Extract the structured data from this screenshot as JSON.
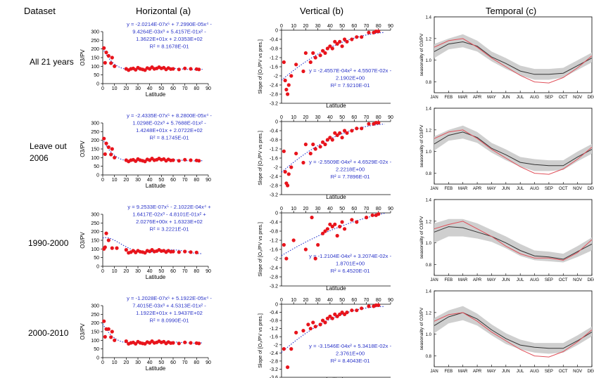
{
  "headers": {
    "dataset": "Dataset",
    "horizontal": "Horizontal (a)",
    "vertical": "Vertical (b)",
    "temporal": "Temporal (c)"
  },
  "row_labels": [
    [
      "All 21 years"
    ],
    [
      "Leave out",
      "2006"
    ],
    [
      "1990-2000"
    ],
    [
      "2000-2010"
    ]
  ],
  "colors": {
    "points": "#e8141c",
    "fit_line": "#2233cc",
    "equation_text": "#2b35c8",
    "temporal_red": "#e0505a",
    "temporal_black": "#333333",
    "temporal_band": "#cfcfcf"
  },
  "chart_data": [
    {
      "panel": "horizontal",
      "row": 0,
      "type": "scatter",
      "xlabel": "Latitude",
      "ylabel": "O3/PV",
      "xlim": [
        0,
        90
      ],
      "ylim": [
        0,
        300
      ],
      "xticks": [
        0,
        10,
        20,
        30,
        40,
        50,
        60,
        70,
        80,
        90
      ],
      "yticks": [
        0,
        50,
        100,
        150,
        200,
        250,
        300
      ],
      "equation": [
        "y = -2.0214E-07x⁵ + 7.2990E-05x⁴ -",
        "9.4264E-03x³ + 5.4157E-01x² -",
        "1.3622E+01x + 2.0353E+02",
        "R² = 8.1678E-01"
      ],
      "fit": {
        "coef": [
          203.53,
          -13.622,
          0.54157,
          -0.0094264,
          7.299e-05,
          -2.0214e-07
        ]
      },
      "x": [
        1,
        2,
        3,
        5,
        7,
        8,
        10,
        20,
        22,
        24,
        26,
        28,
        30,
        32,
        34,
        36,
        38,
        40,
        42,
        44,
        46,
        48,
        50,
        52,
        54,
        56,
        58,
        60,
        65,
        70,
        75,
        80,
        82
      ],
      "y": [
        205,
        120,
        180,
        160,
        118,
        150,
        100,
        85,
        78,
        85,
        88,
        80,
        92,
        85,
        82,
        78,
        90,
        85,
        95,
        85,
        88,
        95,
        88,
        92,
        82,
        90,
        84,
        85,
        82,
        88,
        85,
        84,
        82
      ]
    },
    {
      "panel": "vertical",
      "row": 0,
      "type": "scatter",
      "xlabel": "Latitude",
      "ylabel": "Slope of [O₃/PV vs pres.]",
      "xlim": [
        0,
        90
      ],
      "ylim": [
        -3.2,
        0
      ],
      "xticks": [
        0,
        10,
        20,
        30,
        40,
        50,
        60,
        70,
        80,
        90
      ],
      "yticks": [
        0,
        -0.4,
        -0.8,
        -1.2,
        -1.6,
        -2,
        -2.4,
        -2.8,
        -3.2
      ],
      "equation": [
        "y = -2.4557E-04x² + 4.5507E-02x -",
        "2.1902E+00",
        "R² = 7.9210E-01"
      ],
      "fit": {
        "coef": [
          -2.1902,
          0.045507,
          -0.00024557
        ]
      },
      "x": [
        2,
        3,
        4,
        5,
        6,
        8,
        12,
        18,
        20,
        24,
        26,
        28,
        32,
        34,
        36,
        38,
        40,
        42,
        44,
        46,
        48,
        50,
        52,
        54,
        58,
        62,
        66,
        72,
        76,
        78,
        80
      ],
      "y": [
        -1.4,
        -2.2,
        -2.6,
        -2.8,
        -2.4,
        -2.0,
        -1.5,
        -1.8,
        -1.0,
        -1.4,
        -1.0,
        -1.2,
        -1.1,
        -0.9,
        -1.0,
        -0.8,
        -0.7,
        -0.8,
        -0.5,
        -0.6,
        -0.5,
        -0.7,
        -0.4,
        -0.5,
        -0.4,
        -0.3,
        -0.3,
        -0.1,
        -0.1,
        -0.05,
        -0.05
      ]
    },
    {
      "panel": "temporal",
      "row": 0,
      "type": "line",
      "ylabel": "seasonality of O3/PV",
      "categories": [
        "JAN",
        "FEB",
        "MAR",
        "APR",
        "MAY",
        "JUN",
        "JUL",
        "AUG",
        "SEP",
        "OCT",
        "NOV",
        "DEC"
      ],
      "ylim": [
        0.7,
        1.4
      ],
      "yticks": [
        0.8,
        1.0,
        1.2,
        1.4
      ],
      "series": [
        {
          "values": [
            1.08,
            1.15,
            1.17,
            1.13,
            1.03,
            0.97,
            0.9,
            0.87,
            0.87,
            0.88,
            0.95,
            1.02
          ]
        },
        {
          "values": [
            1.12,
            1.18,
            1.2,
            1.12,
            1.02,
            0.94,
            0.86,
            0.8,
            0.79,
            0.84,
            0.93,
            1.04
          ]
        }
      ],
      "band_lower": [
        1.02,
        1.1,
        1.12,
        1.08,
        0.99,
        0.92,
        0.86,
        0.82,
        0.82,
        0.84,
        0.91,
        0.98
      ],
      "band_upper": [
        1.15,
        1.2,
        1.24,
        1.18,
        1.08,
        1.02,
        0.95,
        0.92,
        0.92,
        0.93,
        1.0,
        1.07
      ]
    },
    {
      "panel": "horizontal",
      "row": 1,
      "type": "scatter",
      "xlabel": "Latitude",
      "ylabel": "O3/PV",
      "xlim": [
        0,
        90
      ],
      "ylim": [
        0,
        300
      ],
      "xticks": [
        0,
        10,
        20,
        30,
        40,
        50,
        60,
        70,
        80,
        90
      ],
      "yticks": [
        0,
        50,
        100,
        150,
        200,
        250,
        300
      ],
      "equation": [
        "y = -2.4335E-07x⁵ + 8.2800E-05x⁴ -",
        "1.0298E-02x³ + 5.7688E-01x² -",
        "1.4248E+01x + 2.0722E+02",
        "R² = 8.1745E-01"
      ],
      "fit": {
        "coef": [
          207.22,
          -14.248,
          0.57688,
          -0.010298,
          8.28e-05,
          -2.4335e-07
        ]
      },
      "x": [
        1,
        2,
        3,
        5,
        7,
        8,
        10,
        20,
        22,
        24,
        26,
        28,
        30,
        32,
        34,
        36,
        38,
        40,
        42,
        44,
        46,
        48,
        50,
        52,
        54,
        56,
        58,
        60,
        65,
        70,
        75,
        80,
        82
      ],
      "y": [
        210,
        120,
        182,
        160,
        118,
        150,
        100,
        85,
        78,
        85,
        88,
        80,
        92,
        85,
        82,
        78,
        90,
        85,
        95,
        85,
        88,
        95,
        88,
        92,
        82,
        90,
        84,
        85,
        82,
        88,
        85,
        84,
        82
      ]
    },
    {
      "panel": "vertical",
      "row": 1,
      "type": "scatter",
      "xlabel": "Latitude",
      "ylabel": "Slope of [O₃/PV vs pres.]",
      "xlim": [
        0,
        90
      ],
      "ylim": [
        -3.2,
        0
      ],
      "xticks": [
        0,
        10,
        20,
        30,
        40,
        50,
        60,
        70,
        80,
        90
      ],
      "yticks": [
        0,
        -0.4,
        -0.8,
        -1.2,
        -1.6,
        -2,
        -2.4,
        -2.8,
        -3.2
      ],
      "equation": [
        "y = -2.5509E-04x² + 4.6529E-02x -",
        "2.2218E+00",
        "R² = 7.7896E-01"
      ],
      "fit": {
        "coef": [
          -2.2218,
          0.046529,
          -0.00025509
        ]
      },
      "x": [
        2,
        3,
        4,
        5,
        6,
        8,
        12,
        18,
        20,
        24,
        26,
        28,
        32,
        34,
        36,
        38,
        40,
        42,
        44,
        46,
        48,
        50,
        52,
        54,
        58,
        62,
        66,
        72,
        76,
        78,
        80
      ],
      "y": [
        -1.3,
        -2.2,
        -2.7,
        -2.8,
        -2.3,
        -2.0,
        -1.4,
        -1.8,
        -1.0,
        -1.4,
        -1.0,
        -1.2,
        -1.1,
        -0.9,
        -1.0,
        -0.8,
        -0.7,
        -0.8,
        -0.5,
        -0.6,
        -0.5,
        -0.7,
        -0.4,
        -0.5,
        -0.4,
        -0.3,
        -0.3,
        -0.1,
        -0.1,
        -0.05,
        -0.05
      ]
    },
    {
      "panel": "temporal",
      "row": 1,
      "type": "line",
      "ylabel": "seasonality of O3/PV",
      "categories": [
        "JAN",
        "FEB",
        "MAR",
        "APR",
        "MAY",
        "JUN",
        "JUL",
        "AUG",
        "SEP",
        "OCT",
        "NOV",
        "DEC"
      ],
      "ylim": [
        0.7,
        1.4
      ],
      "yticks": [
        0.8,
        1.0,
        1.2,
        1.4
      ],
      "series": [
        {
          "values": [
            1.07,
            1.15,
            1.18,
            1.13,
            1.03,
            0.97,
            0.9,
            0.88,
            0.87,
            0.87,
            0.95,
            1.02
          ]
        },
        {
          "values": [
            1.12,
            1.18,
            1.2,
            1.12,
            1.02,
            0.94,
            0.86,
            0.8,
            0.79,
            0.84,
            0.93,
            1.04
          ]
        }
      ],
      "band_lower": [
        1.01,
        1.1,
        1.12,
        1.08,
        0.99,
        0.92,
        0.86,
        0.82,
        0.82,
        0.83,
        0.91,
        0.98
      ],
      "band_upper": [
        1.14,
        1.2,
        1.24,
        1.18,
        1.08,
        1.02,
        0.95,
        0.93,
        0.92,
        0.92,
        1.0,
        1.07
      ]
    },
    {
      "panel": "horizontal",
      "row": 2,
      "type": "scatter",
      "xlabel": "Latitude",
      "ylabel": "O3/PV",
      "xlim": [
        0,
        90
      ],
      "ylim": [
        0,
        300
      ],
      "xticks": [
        0,
        10,
        20,
        30,
        40,
        50,
        60,
        70,
        80,
        90
      ],
      "yticks": [
        0,
        50,
        100,
        150,
        200,
        250,
        300
      ],
      "equation": [
        "y = 9.2533E-07x⁵ - 2.1022E-04x⁴ +",
        "1.6417E-02x³ - 4.8101E-01x² +",
        "2.0276E+00x + 1.6323E+02",
        "R² = 3.2221E-01"
      ],
      "fit": {
        "coef": [
          163.23,
          2.0276,
          -0.48101,
          0.016417,
          -0.00021022,
          9.2533e-07
        ]
      },
      "x": [
        1,
        2,
        3,
        5,
        8,
        12,
        20,
        22,
        24,
        26,
        28,
        30,
        32,
        34,
        36,
        38,
        40,
        42,
        44,
        46,
        48,
        50,
        52,
        54,
        56,
        58,
        60,
        65,
        70,
        75,
        80
      ],
      "y": [
        100,
        110,
        190,
        150,
        105,
        105,
        95,
        78,
        82,
        90,
        80,
        90,
        84,
        82,
        78,
        90,
        86,
        95,
        85,
        88,
        95,
        88,
        90,
        82,
        90,
        84,
        85,
        82,
        85,
        82,
        80
      ]
    },
    {
      "panel": "vertical",
      "row": 2,
      "type": "scatter",
      "xlabel": "Latitude",
      "ylabel": "Slope of [O₃/PV vs pres.]",
      "xlim": [
        0,
        90
      ],
      "ylim": [
        -3.2,
        0
      ],
      "xticks": [
        0,
        10,
        20,
        30,
        40,
        50,
        60,
        70,
        80,
        90
      ],
      "yticks": [
        0,
        -0.4,
        -0.8,
        -1.2,
        -1.6,
        -2,
        -2.4,
        -2.8,
        -3.2
      ],
      "equation": [
        "y = -1.2104E-04x² + 3.2074E-02x -",
        "1.8701E+00",
        "R² = 6.4520E-01"
      ],
      "fit": {
        "coef": [
          -1.8701,
          0.032074,
          -0.00012104
        ]
      },
      "x": [
        2,
        4,
        10,
        20,
        25,
        28,
        30,
        34,
        36,
        38,
        40,
        42,
        44,
        46,
        48,
        50,
        52,
        58,
        62,
        70,
        75,
        78,
        80
      ],
      "y": [
        -1.4,
        -2.0,
        -1.2,
        -1.6,
        -0.2,
        -2.0,
        -1.4,
        -0.9,
        -0.8,
        -0.7,
        -0.5,
        -0.6,
        -0.5,
        -1.0,
        -0.6,
        -0.4,
        -0.7,
        -0.3,
        -0.4,
        -0.2,
        -0.1,
        -0.1,
        -0.05
      ]
    },
    {
      "panel": "temporal",
      "row": 2,
      "type": "line",
      "ylabel": "seasonality of O3/PV",
      "categories": [
        "JAN",
        "FEB",
        "MAR",
        "APR",
        "MAY",
        "JUN",
        "JUL",
        "AUG",
        "SEP",
        "OCT",
        "NOV",
        "DEC"
      ],
      "ylim": [
        0.7,
        1.4
      ],
      "yticks": [
        0.8,
        1.0,
        1.2,
        1.4
      ],
      "series": [
        {
          "values": [
            1.1,
            1.15,
            1.14,
            1.1,
            1.06,
            1.0,
            0.93,
            0.88,
            0.87,
            0.85,
            0.92,
            0.99
          ]
        },
        {
          "values": [
            1.13,
            1.17,
            1.2,
            1.13,
            1.06,
            0.97,
            0.9,
            0.86,
            0.86,
            0.84,
            0.91,
            1.03
          ]
        }
      ],
      "band_lower": [
        1.0,
        1.06,
        1.06,
        1.04,
        1.01,
        0.95,
        0.88,
        0.84,
        0.83,
        0.82,
        0.87,
        0.93
      ],
      "band_upper": [
        1.18,
        1.22,
        1.22,
        1.18,
        1.12,
        1.06,
        0.99,
        0.93,
        0.92,
        0.9,
        0.97,
        1.05
      ]
    },
    {
      "panel": "horizontal",
      "row": 3,
      "type": "scatter",
      "xlabel": "Latitude",
      "ylabel": "O3/PV",
      "xlim": [
        0,
        90
      ],
      "ylim": [
        0,
        300
      ],
      "xticks": [
        0,
        10,
        20,
        30,
        40,
        50,
        60,
        70,
        80,
        90
      ],
      "yticks": [
        0,
        50,
        100,
        150,
        200,
        250,
        300
      ],
      "equation": [
        "y = -1.2028E-07x⁵ + 5.1922E-05x⁴ -",
        "7.4015E-03x³ + 4.5313E-01x² -",
        "1.1922E+01x + 1.9437E+02",
        "R² = 8.0990E-01"
      ],
      "fit": {
        "coef": [
          194.37,
          -11.922,
          0.45313,
          -0.0074015,
          5.1922e-05,
          -1.2028e-07
        ]
      },
      "x": [
        1,
        2,
        3,
        5,
        7,
        8,
        10,
        20,
        22,
        24,
        26,
        28,
        30,
        32,
        34,
        36,
        38,
        40,
        42,
        44,
        46,
        48,
        50,
        52,
        54,
        56,
        58,
        60,
        65,
        70,
        75,
        80,
        82
      ],
      "y": [
        210,
        120,
        165,
        165,
        118,
        150,
        100,
        95,
        80,
        85,
        88,
        80,
        92,
        85,
        82,
        80,
        90,
        85,
        95,
        85,
        88,
        95,
        88,
        92,
        82,
        90,
        84,
        85,
        82,
        88,
        85,
        84,
        82
      ]
    },
    {
      "panel": "vertical",
      "row": 3,
      "type": "scatter",
      "xlabel": "Latitude",
      "ylabel": "Slope of [O₃/PV vs pres.]",
      "xlim": [
        0,
        90
      ],
      "ylim": [
        -3.6,
        0
      ],
      "xticks": [
        0,
        10,
        20,
        30,
        40,
        50,
        60,
        70,
        80,
        90
      ],
      "yticks": [
        0,
        -0.4,
        -0.8,
        -1.2,
        -1.6,
        -2,
        -2.4,
        -2.8,
        -3.2,
        -3.6
      ],
      "equation": [
        "y = -3.1546E-04x² + 5.3418E-02x -",
        "2.3761E+00",
        "R² = 8.4043E-01"
      ],
      "fit": {
        "coef": [
          -2.3761,
          0.053418,
          -0.00031546
        ]
      },
      "x": [
        2,
        5,
        8,
        12,
        18,
        22,
        24,
        26,
        28,
        32,
        34,
        36,
        38,
        40,
        42,
        44,
        46,
        48,
        50,
        52,
        54,
        58,
        62,
        66,
        72,
        76,
        78,
        80
      ],
      "y": [
        -2.2,
        -3.1,
        -2.2,
        -1.4,
        -1.3,
        -1.0,
        -1.2,
        -0.9,
        -1.1,
        -1.0,
        -0.8,
        -0.9,
        -0.7,
        -0.6,
        -0.7,
        -0.5,
        -0.6,
        -0.5,
        -0.4,
        -0.5,
        -0.4,
        -0.3,
        -0.3,
        -0.2,
        -0.1,
        -0.1,
        -0.05,
        -0.05
      ]
    },
    {
      "panel": "temporal",
      "row": 3,
      "type": "line",
      "ylabel": "seasonality of O3/PV",
      "categories": [
        "JAN",
        "FEB",
        "MAR",
        "APR",
        "MAY",
        "JUN",
        "JUL",
        "AUG",
        "SEP",
        "OCT",
        "NOV",
        "DEC"
      ],
      "ylim": [
        0.7,
        1.4
      ],
      "yticks": [
        0.8,
        1.0,
        1.2,
        1.4
      ],
      "series": [
        {
          "values": [
            1.08,
            1.16,
            1.2,
            1.14,
            1.04,
            0.96,
            0.9,
            0.88,
            0.87,
            0.87,
            0.94,
            1.02
          ]
        },
        {
          "values": [
            1.12,
            1.18,
            1.2,
            1.12,
            1.02,
            0.94,
            0.86,
            0.8,
            0.79,
            0.84,
            0.93,
            1.04
          ]
        }
      ],
      "band_lower": [
        1.01,
        1.1,
        1.13,
        1.08,
        0.99,
        0.91,
        0.86,
        0.83,
        0.82,
        0.83,
        0.9,
        0.98
      ],
      "band_upper": [
        1.15,
        1.22,
        1.26,
        1.19,
        1.09,
        1.01,
        0.95,
        0.92,
        0.92,
        0.92,
        0.99,
        1.07
      ]
    }
  ]
}
